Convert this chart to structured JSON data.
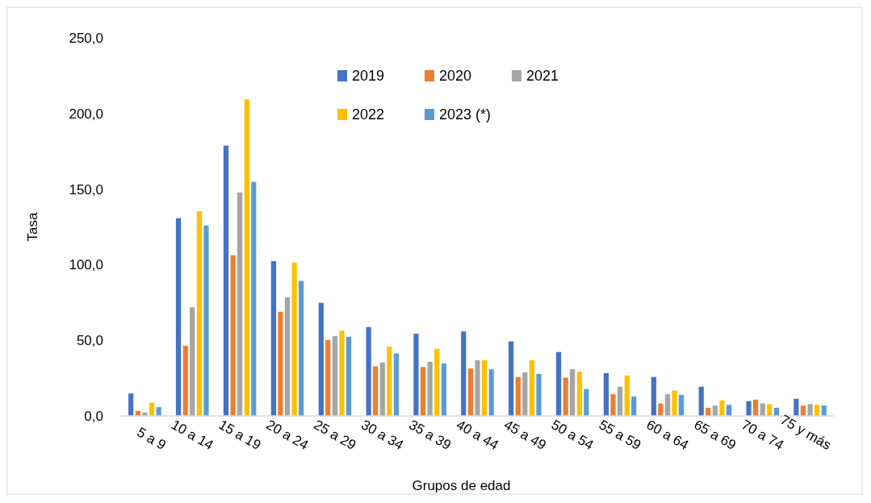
{
  "chart_data": {
    "type": "bar",
    "xlabel": "Grupos de edad",
    "ylabel": "Tasa",
    "categories": [
      "5 a 9",
      "10 a 14",
      "15 a 19",
      "20 a 24",
      "25 a 29",
      "30 a 34",
      "35 a 39",
      "40 a 44",
      "45 a 49",
      "50 a 54",
      "55 a 59",
      "60 a 64",
      "65 a 69",
      "70 a 74",
      "75 y más"
    ],
    "series": [
      {
        "name": "2019",
        "color": "#4472c4",
        "values": [
          15,
          131,
          179,
          102.5,
          75,
          59,
          54.5,
          56,
          49.5,
          42.5,
          28.5,
          26,
          19.5,
          10,
          11.5
        ]
      },
      {
        "name": "2020",
        "color": "#ed7d31",
        "values": [
          3.5,
          46.5,
          106.5,
          69,
          50.5,
          33,
          32.5,
          31.5,
          26,
          25.5,
          14.5,
          8.5,
          5.5,
          11,
          7
        ]
      },
      {
        "name": "2021",
        "color": "#a5a5a5",
        "values": [
          2.5,
          72,
          148,
          78.5,
          53,
          35.5,
          36,
          37,
          29,
          31,
          19.5,
          14.5,
          7,
          8.5,
          8
        ]
      },
      {
        "name": "2022",
        "color": "#ffc000",
        "values": [
          9,
          135.5,
          209.5,
          101.5,
          56.5,
          46,
          44.5,
          37,
          37,
          29.5,
          27,
          17,
          10.5,
          8,
          7.5
        ]
      },
      {
        "name": "2023 (*)",
        "color": "#5b9bd5",
        "values": [
          6,
          126,
          155,
          89.5,
          52.5,
          41.5,
          35,
          31,
          28,
          18,
          13,
          14,
          7.5,
          5.5,
          7
        ]
      }
    ],
    "ylim": [
      0,
      250
    ],
    "yticks": [
      {
        "value": 0,
        "label": "0,0"
      },
      {
        "value": 50,
        "label": "50,0"
      },
      {
        "value": 100,
        "label": "100,0"
      },
      {
        "value": 150,
        "label": "150,0"
      },
      {
        "value": 200,
        "label": "200,0"
      },
      {
        "value": 250,
        "label": "250,0"
      }
    ],
    "grid": false,
    "legend": "top"
  }
}
